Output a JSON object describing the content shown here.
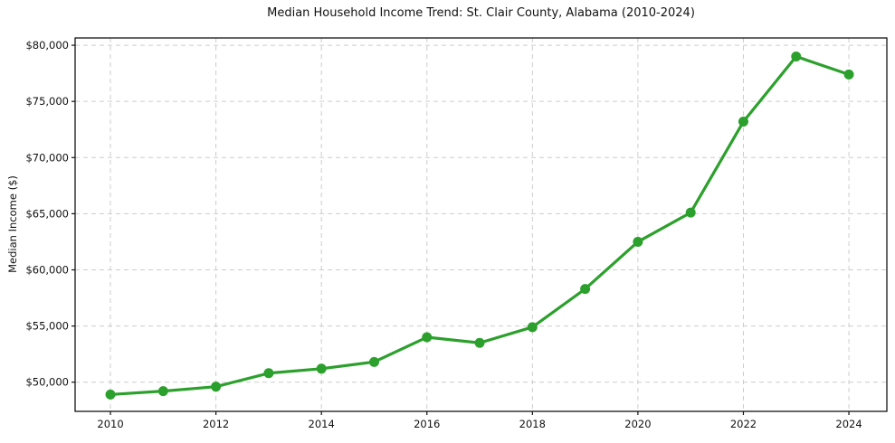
{
  "chart_data": {
    "type": "line",
    "title": "Median Household Income Trend: St. Clair County, Alabama (2010-2024)",
    "xlabel": "",
    "ylabel": "Median Income ($)",
    "series_name": "Median Household Income",
    "x": [
      2010,
      2011,
      2012,
      2013,
      2014,
      2015,
      2016,
      2017,
      2018,
      2019,
      2020,
      2021,
      2022,
      2023,
      2024
    ],
    "values": [
      48900,
      49200,
      49600,
      50800,
      51200,
      51800,
      54000,
      53500,
      54900,
      58300,
      62500,
      65100,
      73200,
      79000,
      77400
    ],
    "xticks": [
      2010,
      2012,
      2014,
      2016,
      2018,
      2020,
      2022,
      2024
    ],
    "xtick_labels": [
      "2010",
      "2012",
      "2014",
      "2016",
      "2018",
      "2020",
      "2022",
      "2024"
    ],
    "ytick_values": [
      50000,
      55000,
      60000,
      65000,
      70000,
      75000,
      80000
    ],
    "ytick_labels": [
      "$50,000",
      "$55,000",
      "$60,000",
      "$65,000",
      "$70,000",
      "$75,000",
      "$80,000"
    ],
    "xlim": [
      2009.33,
      2024.72
    ],
    "ylim": [
      47400,
      80650
    ],
    "grid": true,
    "grid_style": "dashed",
    "line_color": "#2ca02c",
    "marker": "circle",
    "marker_radius": 5.5,
    "background_color": "#ffffff",
    "legend": "none"
  }
}
